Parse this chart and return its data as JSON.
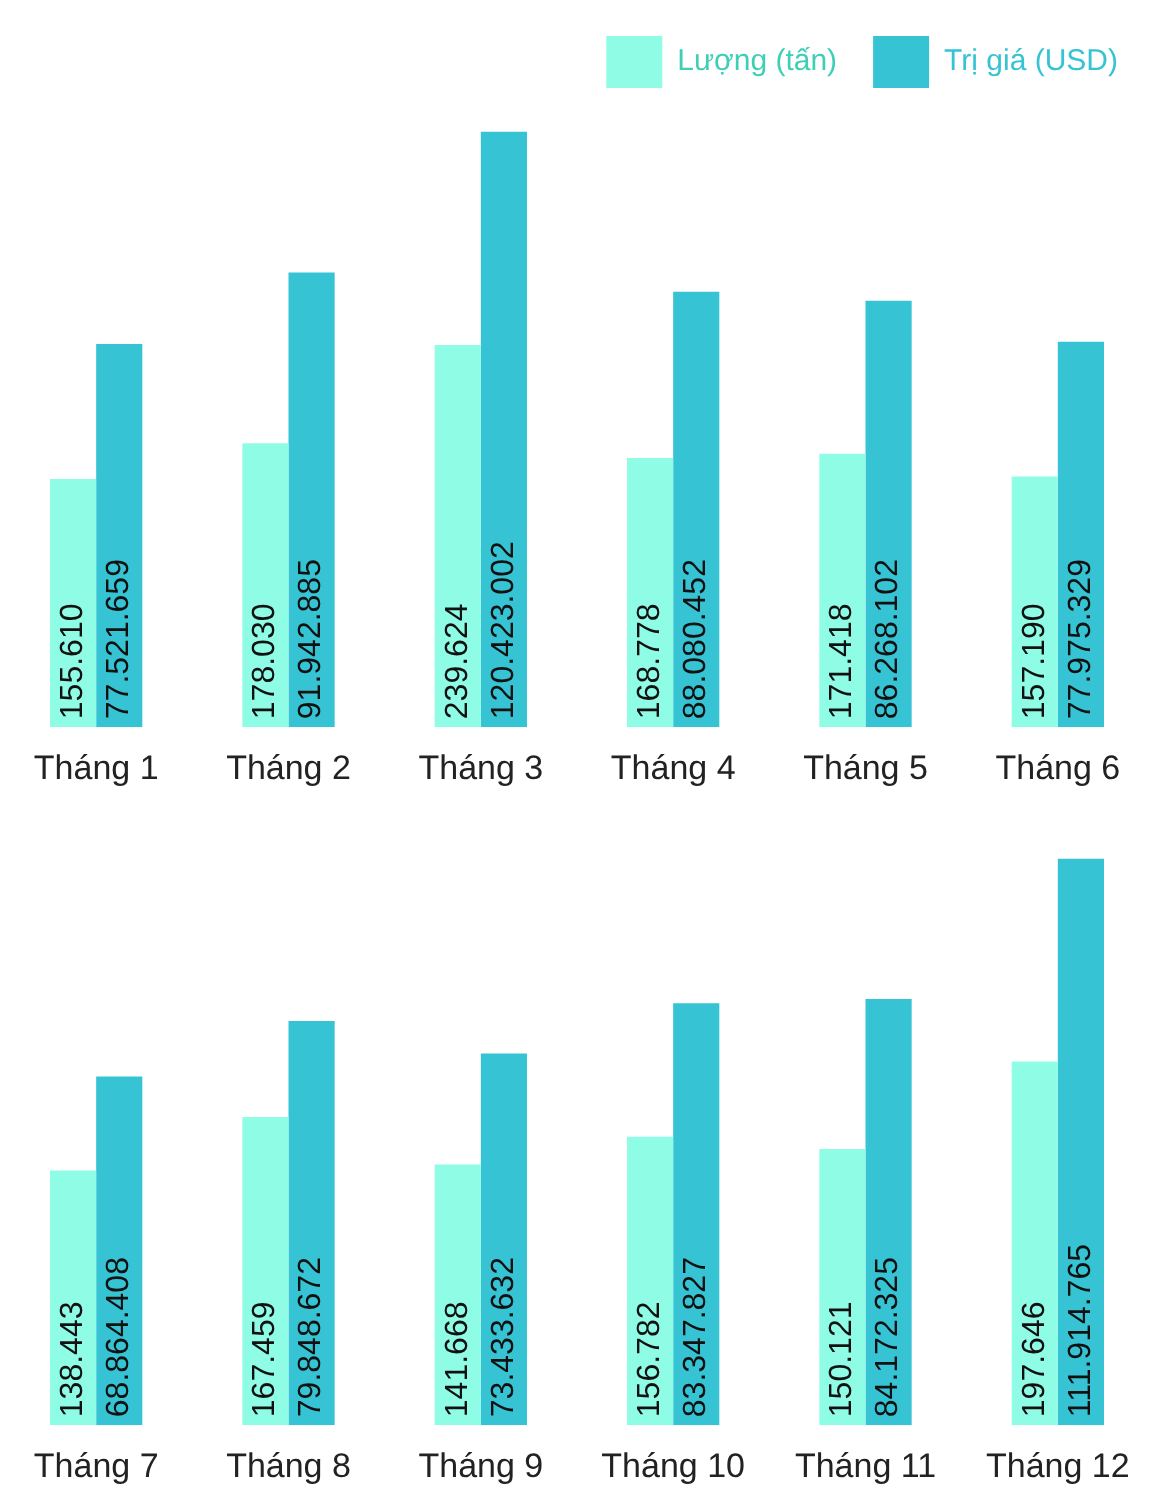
{
  "chart_data": [
    {
      "type": "bar",
      "categories": [
        "Tháng 1",
        "Tháng 2",
        "Tháng 3",
        "Tháng 4",
        "Tháng 5",
        "Tháng 6"
      ],
      "series": [
        {
          "name": "Lượng (tấn)",
          "color": "#8ffce6",
          "values": [
            155610,
            178030,
            239624,
            168778,
            171418,
            157190
          ],
          "value_labels": [
            "155.610",
            "178.030",
            "239.624",
            "168.778",
            "171.418",
            "157.190"
          ]
        },
        {
          "name": "Trị giá (USD)",
          "color": "#36c4d4",
          "axis": "y2",
          "values": [
            77521659,
            91942885,
            120423002,
            88080452,
            86268102,
            77975329
          ],
          "value_labels": [
            "77.521.659",
            "91.942.885",
            "120.423.002",
            "88.080.452",
            "86.268.102",
            "77.975.329"
          ]
        }
      ],
      "legend": "top right",
      "grid": false
    },
    {
      "type": "bar",
      "categories": [
        "Tháng 7",
        "Tháng 8",
        "Tháng 9",
        "Tháng 10",
        "Tháng 11",
        "Tháng 12"
      ],
      "series": [
        {
          "color": "#8ffce6",
          "values": [
            138443,
            167459,
            141668,
            156782,
            150121,
            197646
          ],
          "value_labels": [
            "138.443",
            "167.459",
            "141.668",
            "156.782",
            "150.121",
            "197.646"
          ]
        },
        {
          "color": "#36c4d4",
          "axis": "y2",
          "values": [
            68864408,
            79848672,
            73433632,
            83347827,
            84172325,
            111914765
          ],
          "value_labels": [
            "68.864.408",
            "79.848.672",
            "73.433.632",
            "83.347.827",
            "84.172.325",
            "111.914.765"
          ]
        }
      ],
      "legend": false,
      "grid": false
    }
  ]
}
